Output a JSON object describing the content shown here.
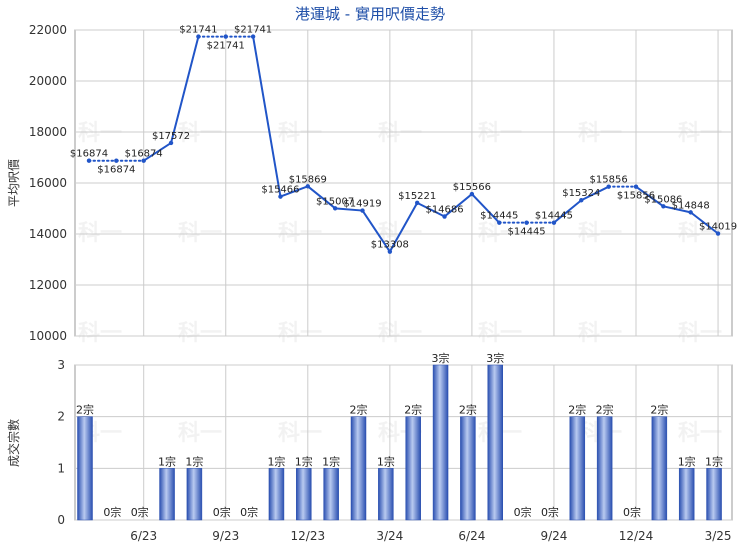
{
  "chart_data": [
    {
      "type": "line",
      "title": "港運城 - 實用呎價走勢",
      "xlabel": "",
      "ylabel": "平均呎價",
      "ylim": [
        10000,
        22000
      ],
      "yticks": [
        "10000",
        "12000",
        "14000",
        "16000",
        "18000",
        "20000",
        "22000"
      ],
      "grid": true,
      "points": [
        {
          "y": 16874,
          "label": "$16874"
        },
        {
          "y": 16874,
          "label": "$16874"
        },
        {
          "y": 16874,
          "label": "$16874"
        },
        {
          "y": 17572,
          "label": "$17572"
        },
        {
          "y": 21741,
          "label": "$21741"
        },
        {
          "y": 21741,
          "label": "$21741"
        },
        {
          "y": 21741,
          "label": "$21741"
        },
        {
          "y": 15466,
          "label": "$15466"
        },
        {
          "y": 15869,
          "label": "$15869"
        },
        {
          "y": 15007,
          "label": "$15007"
        },
        {
          "y": 14919,
          "label": "$14919"
        },
        {
          "y": 13308,
          "label": "$13308"
        },
        {
          "y": 15221,
          "label": "$15221"
        },
        {
          "y": 14686,
          "label": "$14686"
        },
        {
          "y": 15566,
          "label": "$15566"
        },
        {
          "y": 14445,
          "label": "$14445"
        },
        {
          "y": 14445,
          "label": "$14445"
        },
        {
          "y": 14445,
          "label": "$14445"
        },
        {
          "y": 15324,
          "label": "$15324"
        },
        {
          "y": 15856,
          "label": "$15856"
        },
        {
          "y": 15856,
          "label": "$15856"
        },
        {
          "y": 15086,
          "label": "$15086"
        },
        {
          "y": 14848,
          "label": "$14848"
        },
        {
          "y": 14019,
          "label": "$14019"
        }
      ]
    },
    {
      "type": "bar",
      "xlabel": "",
      "ylabel": "成交宗數",
      "ylim": [
        0,
        3
      ],
      "yticks": [
        "0",
        "1",
        "2",
        "3"
      ],
      "unit": "宗",
      "values": [
        2,
        0,
        0,
        1,
        1,
        0,
        0,
        1,
        1,
        1,
        2,
        1,
        2,
        3,
        2,
        3,
        0,
        0,
        2,
        2,
        0,
        2,
        1,
        1
      ],
      "xticks": [
        {
          "index": 2,
          "label": "6/23"
        },
        {
          "index": 5,
          "label": "9/23"
        },
        {
          "index": 8,
          "label": "12/23"
        },
        {
          "index": 11,
          "label": "3/24"
        },
        {
          "index": 14,
          "label": "6/24"
        },
        {
          "index": 17,
          "label": "9/24"
        },
        {
          "index": 20,
          "label": "12/24"
        },
        {
          "index": 23,
          "label": "3/25"
        }
      ]
    }
  ],
  "colors": {
    "line": "#2155c8",
    "bar_dark": "#2a4fb0",
    "bar_light": "#9fb6e8",
    "grid": "#cccccc",
    "title": "#1f4fa8"
  },
  "watermark": "科一"
}
